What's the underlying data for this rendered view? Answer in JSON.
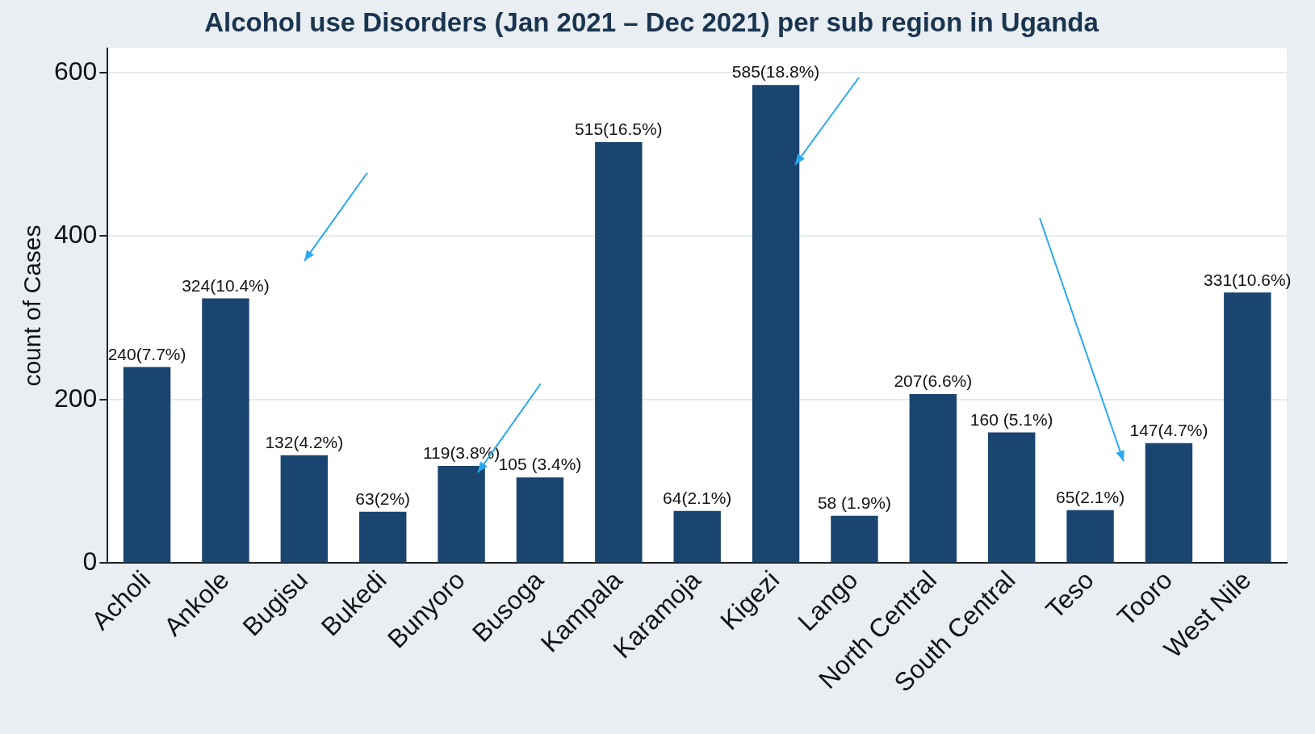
{
  "chart_data": {
    "type": "bar",
    "title": "Alcohol use Disorders (Jan 2021 – Dec 2021) per sub region in Uganda",
    "ylabel": "count of Cases",
    "categories": [
      "Acholi",
      "Ankole",
      "Bugisu",
      "Bukedi",
      "Bunyoro",
      "Busoga",
      "Kampala",
      "Karamoja",
      "Kigezi",
      "Lango",
      "North Central",
      "South Central",
      "Teso",
      "Tooro",
      "West Nile"
    ],
    "values": [
      240,
      324,
      132,
      63,
      119,
      105,
      515,
      64,
      585,
      58,
      207,
      160,
      65,
      147,
      331
    ],
    "value_labels": [
      "240(7.7%)",
      "324(10.4%)",
      "132(4.2%)",
      "63(2%)",
      "119(3.8%)",
      "105 (3.4%)",
      "515(16.5%)",
      "64(2.1%)",
      "585(18.8%)",
      "58 (1.9%)",
      "207(6.6%)",
      "160 (5.1%)",
      "65(2.1%)",
      "147(4.7%)",
      "331(10.6%)"
    ],
    "color": "#1a4570",
    "ylim": [
      0,
      630
    ],
    "yticks": [
      0,
      200,
      400,
      600
    ],
    "grid": "y",
    "legend": false
  }
}
